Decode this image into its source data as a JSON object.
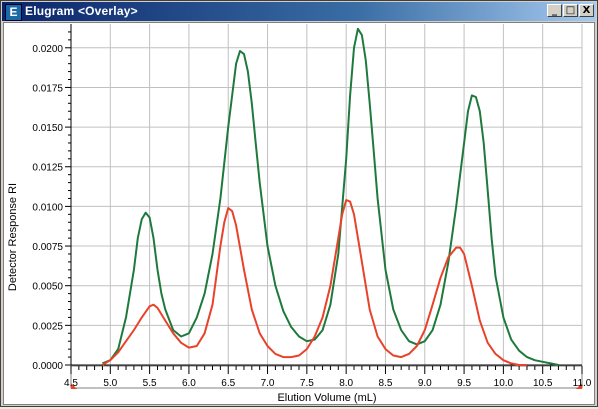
{
  "window": {
    "title": "Elugram <Overlay>",
    "icon_letter": "E",
    "controls": {
      "minimize": "_",
      "maximize": "□",
      "close": "X"
    }
  },
  "chart_data": {
    "type": "line",
    "title": "",
    "xlabel": "Elution Volume (mL)",
    "ylabel": "Detector Response RI",
    "xlim": [
      4.5,
      11.0
    ],
    "ylim": [
      0.0,
      0.0215
    ],
    "grid": true,
    "x_ticks": [
      "4.5",
      "5.0",
      "5.5",
      "6.0",
      "6.5",
      "7.0",
      "7.5",
      "8.0",
      "8.5",
      "9.0",
      "9.5",
      "10.0",
      "10.5",
      "11.0"
    ],
    "y_ticks": [
      "0.0000",
      "0.0025",
      "0.0050",
      "0.0075",
      "0.0100",
      "0.0125",
      "0.0150",
      "0.0175",
      "0.0200"
    ],
    "series": [
      {
        "color": "#1e7a3c",
        "x": [
          4.9,
          5.0,
          5.1,
          5.2,
          5.3,
          5.35,
          5.4,
          5.45,
          5.5,
          5.55,
          5.6,
          5.65,
          5.7,
          5.8,
          5.9,
          6.0,
          6.1,
          6.2,
          6.3,
          6.4,
          6.5,
          6.6,
          6.65,
          6.7,
          6.75,
          6.8,
          6.85,
          6.9,
          7.0,
          7.1,
          7.2,
          7.3,
          7.4,
          7.5,
          7.6,
          7.7,
          7.8,
          7.9,
          8.0,
          8.05,
          8.1,
          8.15,
          8.2,
          8.25,
          8.3,
          8.35,
          8.4,
          8.5,
          8.6,
          8.7,
          8.8,
          8.9,
          9.0,
          9.1,
          9.2,
          9.3,
          9.4,
          9.5,
          9.55,
          9.6,
          9.65,
          9.7,
          9.75,
          9.8,
          9.85,
          9.9,
          10.0,
          10.1,
          10.2,
          10.3,
          10.4,
          10.5,
          10.6,
          10.7
        ],
        "y": [
          0.0001,
          0.0003,
          0.001,
          0.003,
          0.006,
          0.008,
          0.0092,
          0.0096,
          0.0093,
          0.008,
          0.006,
          0.0045,
          0.0035,
          0.0022,
          0.0018,
          0.002,
          0.003,
          0.0045,
          0.007,
          0.0105,
          0.015,
          0.019,
          0.0198,
          0.0196,
          0.0185,
          0.0165,
          0.014,
          0.0115,
          0.0075,
          0.005,
          0.0034,
          0.0024,
          0.0018,
          0.0015,
          0.0016,
          0.0022,
          0.0038,
          0.007,
          0.013,
          0.017,
          0.02,
          0.0212,
          0.0208,
          0.0192,
          0.0165,
          0.0135,
          0.0105,
          0.006,
          0.0035,
          0.0022,
          0.0015,
          0.0013,
          0.0015,
          0.0022,
          0.0038,
          0.0065,
          0.01,
          0.014,
          0.016,
          0.017,
          0.0169,
          0.016,
          0.014,
          0.011,
          0.008,
          0.0056,
          0.003,
          0.0016,
          0.0009,
          0.0005,
          0.0003,
          0.0002,
          0.0001,
          0.0
        ]
      },
      {
        "color": "#e8432a",
        "x": [
          4.9,
          5.0,
          5.1,
          5.2,
          5.3,
          5.4,
          5.5,
          5.55,
          5.6,
          5.7,
          5.8,
          5.9,
          6.0,
          6.1,
          6.2,
          6.3,
          6.4,
          6.45,
          6.5,
          6.55,
          6.6,
          6.7,
          6.8,
          6.9,
          7.0,
          7.1,
          7.2,
          7.3,
          7.4,
          7.5,
          7.6,
          7.7,
          7.8,
          7.9,
          7.95,
          8.0,
          8.05,
          8.1,
          8.2,
          8.3,
          8.4,
          8.5,
          8.6,
          8.7,
          8.8,
          8.9,
          9.0,
          9.1,
          9.2,
          9.3,
          9.4,
          9.45,
          9.5,
          9.6,
          9.7,
          9.8,
          9.9,
          10.0,
          10.1,
          10.2,
          10.3
        ],
        "y": [
          0.0,
          0.0003,
          0.0008,
          0.0015,
          0.0022,
          0.003,
          0.0037,
          0.0038,
          0.0036,
          0.0028,
          0.002,
          0.0014,
          0.0011,
          0.0012,
          0.002,
          0.0038,
          0.0075,
          0.009,
          0.0099,
          0.0097,
          0.0088,
          0.006,
          0.0035,
          0.002,
          0.0012,
          0.0007,
          0.0005,
          0.0005,
          0.0006,
          0.001,
          0.0018,
          0.003,
          0.005,
          0.008,
          0.0095,
          0.0104,
          0.0103,
          0.0095,
          0.0065,
          0.0035,
          0.0018,
          0.001,
          0.0006,
          0.0005,
          0.0007,
          0.0012,
          0.0022,
          0.0038,
          0.0055,
          0.0068,
          0.0074,
          0.0074,
          0.007,
          0.005,
          0.0028,
          0.0014,
          0.0007,
          0.0003,
          0.0001,
          0.0,
          0.0
        ]
      }
    ]
  }
}
